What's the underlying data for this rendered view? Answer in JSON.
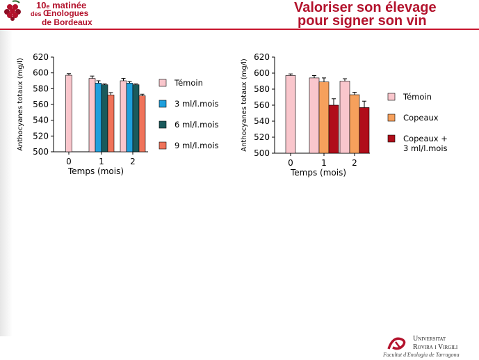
{
  "header": {
    "event_num": "10",
    "event_sup": "e",
    "event_word": " matinée",
    "line2_des": "des ",
    "line2_name": "Œnologues",
    "line3": "de Bordeaux",
    "logo_label": "ŒNOLOGUES BORDEAUX"
  },
  "slide": {
    "title_line1": "Valoriser son élevage",
    "title_line2": "pour signer son vin"
  },
  "footer": {
    "univ_line1": "Universitat",
    "univ_line2": "Rovira i Virgili",
    "faculty": "Facultat d'Enologia de Tarragona"
  },
  "colors": {
    "brand_red": "#b3122c",
    "temoin": "#f9c6cc",
    "ml3": "#1e9fdc",
    "ml6": "#1a5a5c",
    "ml9": "#f0735a",
    "copeaux": "#f6a05c",
    "copeaux_ml3": "#b00d1a"
  },
  "chart_data": [
    {
      "type": "bar",
      "ylabel": "Anthocyanes totaux (mg/l)",
      "xlabel": "Temps (mois)",
      "ylim": [
        500,
        620
      ],
      "yticks": [
        "500",
        "520",
        "540",
        "560",
        "580",
        "600",
        "620"
      ],
      "categories": [
        "0",
        "1",
        "2"
      ],
      "series": [
        {
          "name": "Témoin",
          "color_key": "temoin",
          "values": [
            597,
            593,
            590
          ],
          "errors": [
            2,
            3,
            3
          ]
        },
        {
          "name": "3 ml/l.mois",
          "color_key": "ml3",
          "values": [
            null,
            587,
            587
          ],
          "errors": [
            0,
            3,
            2
          ]
        },
        {
          "name": "6 ml/l.mois",
          "color_key": "ml6",
          "values": [
            null,
            585,
            585
          ],
          "errors": [
            0,
            1,
            1
          ]
        },
        {
          "name": "9 ml/l.mois",
          "color_key": "ml9",
          "values": [
            null,
            572,
            571
          ],
          "errors": [
            0,
            3,
            2
          ]
        }
      ]
    },
    {
      "type": "bar",
      "ylabel": "Anthocyanes totaux (mg/l)",
      "xlabel": "Temps (mois)",
      "ylim": [
        500,
        620
      ],
      "yticks": [
        "500",
        "520",
        "540",
        "560",
        "580",
        "600",
        "620"
      ],
      "categories": [
        "0",
        "1",
        "2"
      ],
      "series": [
        {
          "name": "Témoin",
          "color_key": "temoin",
          "values": [
            597,
            594,
            590
          ],
          "errors": [
            2,
            3,
            3
          ]
        },
        {
          "name": "Copeaux",
          "color_key": "copeaux",
          "values": [
            null,
            589,
            573
          ],
          "errors": [
            0,
            5,
            3
          ]
        },
        {
          "name": "Copeaux + 3 ml/l.mois",
          "label_lines": [
            "Copeaux +",
            "3 ml/l.mois"
          ],
          "color_key": "copeaux_ml3",
          "values": [
            null,
            560,
            557
          ],
          "errors": [
            0,
            8,
            8
          ]
        }
      ]
    }
  ]
}
